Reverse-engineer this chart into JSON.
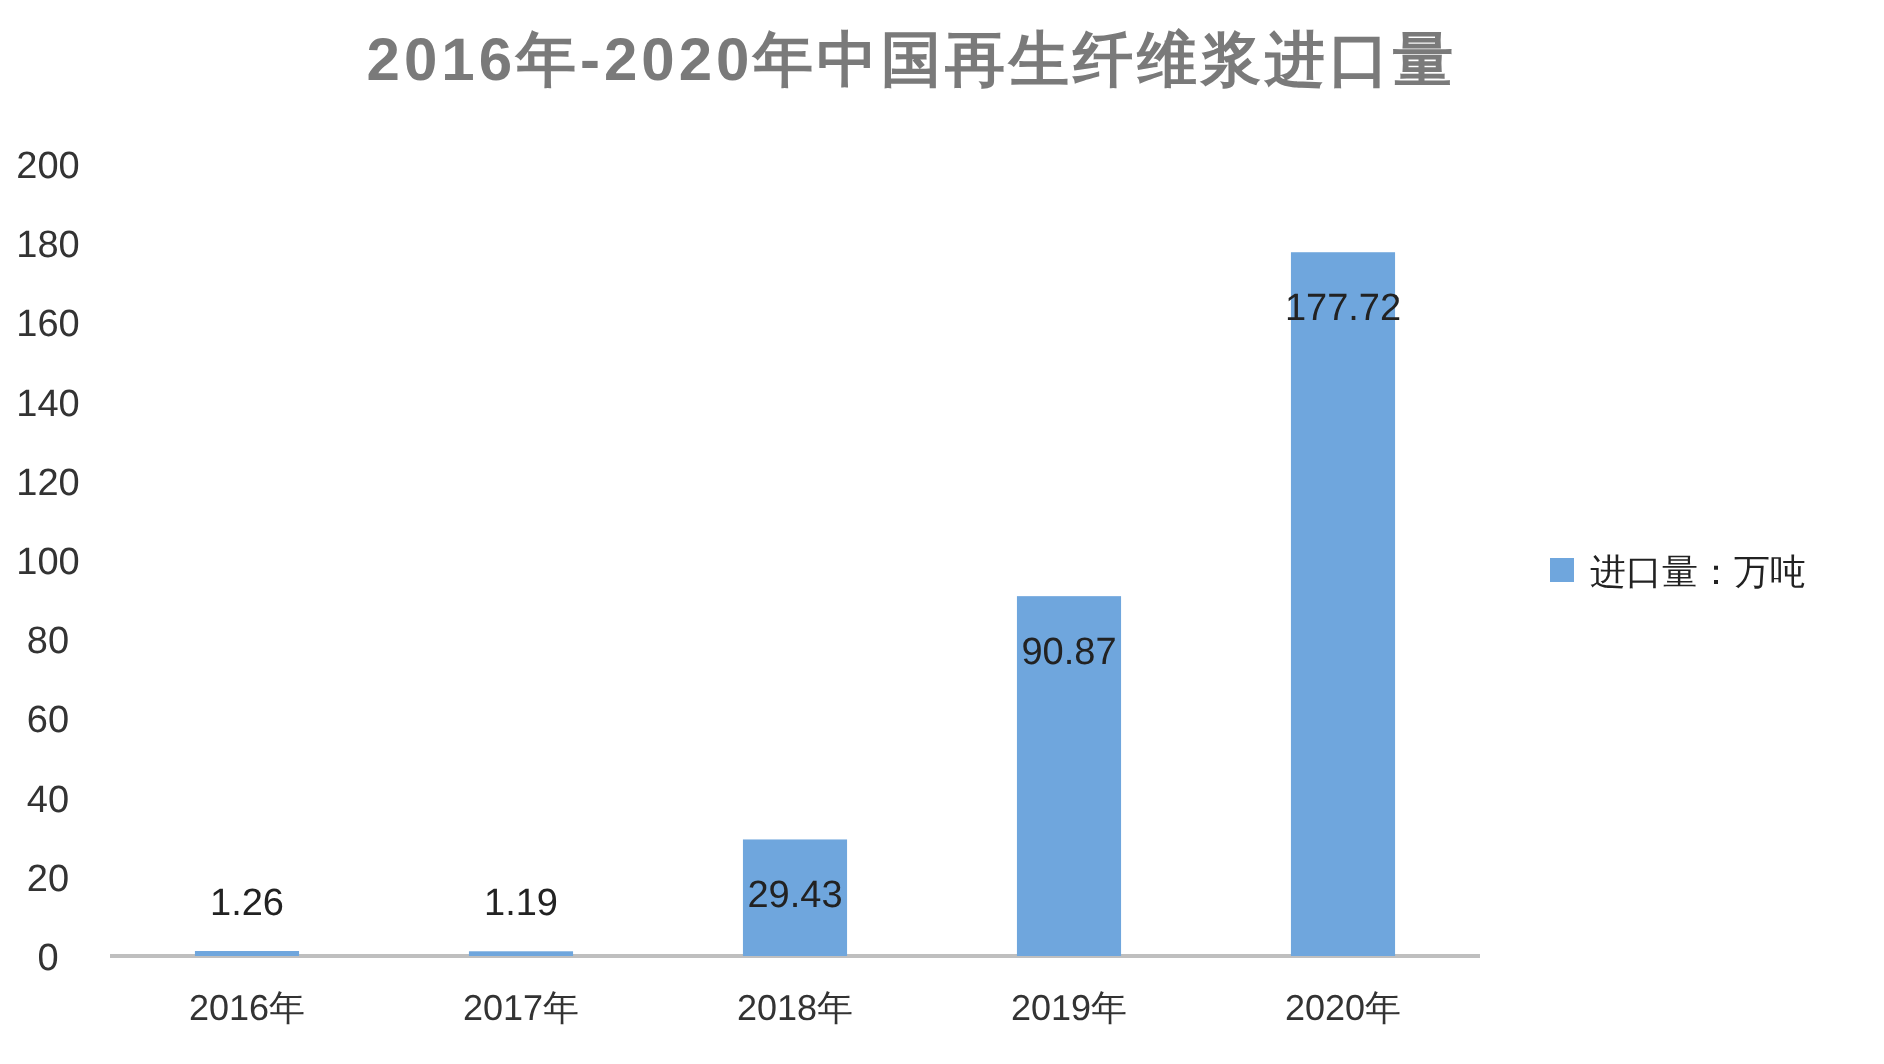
{
  "chart_data": {
    "type": "bar",
    "title": "2016年-2020年中国再生纤维浆进口量",
    "categories": [
      "2016年",
      "2017年",
      "2018年",
      "2019年",
      "2020年"
    ],
    "series": [
      {
        "name": "进口量：万吨",
        "color": "#6fa6dd",
        "values": [
          1.26,
          1.19,
          29.43,
          90.87,
          177.72
        ]
      }
    ],
    "ylim": [
      0,
      200
    ],
    "yticks": [
      0,
      20,
      40,
      60,
      80,
      100,
      120,
      140,
      160,
      180,
      200
    ],
    "data_labels": true,
    "legend": "right"
  }
}
